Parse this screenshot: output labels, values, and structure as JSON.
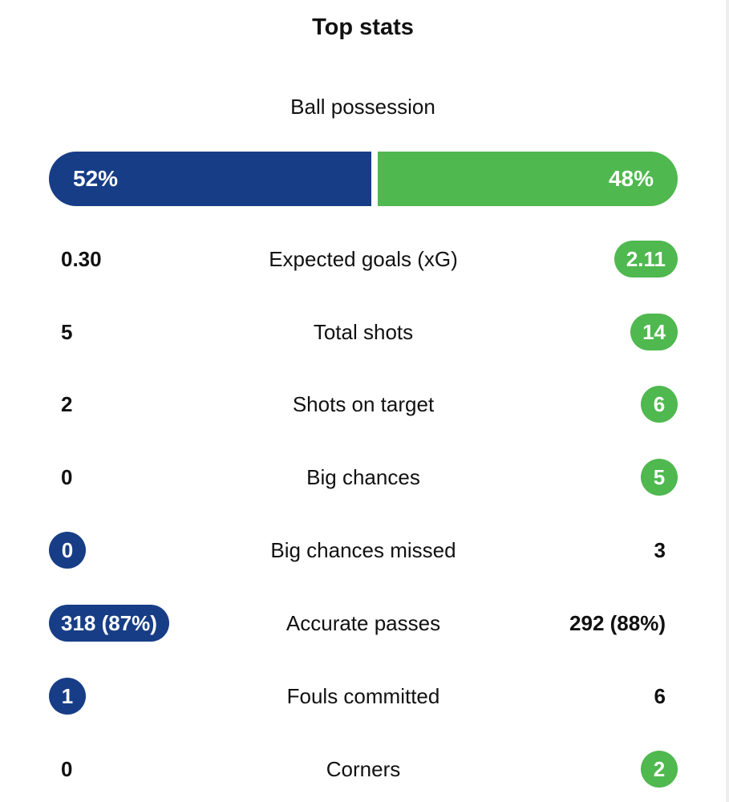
{
  "title": "Top stats",
  "possession": {
    "label": "Ball possession",
    "home_text": "52%",
    "away_text": "48%",
    "home_fraction": 0.52,
    "away_fraction": 0.48
  },
  "colors": {
    "home": "#173d86",
    "away": "#4fb84f"
  },
  "stats": [
    {
      "label": "Expected goals (xG)",
      "home": "0.30",
      "away": "2.11",
      "highlight": "away"
    },
    {
      "label": "Total shots",
      "home": "5",
      "away": "14",
      "highlight": "away"
    },
    {
      "label": "Shots on target",
      "home": "2",
      "away": "6",
      "highlight": "away"
    },
    {
      "label": "Big chances",
      "home": "0",
      "away": "5",
      "highlight": "away"
    },
    {
      "label": "Big chances missed",
      "home": "0",
      "away": "3",
      "highlight": "home"
    },
    {
      "label": "Accurate passes",
      "home": "318 (87%)",
      "away": "292 (88%)",
      "highlight": "home"
    },
    {
      "label": "Fouls committed",
      "home": "1",
      "away": "6",
      "highlight": "home"
    },
    {
      "label": "Corners",
      "home": "0",
      "away": "2",
      "highlight": "away"
    }
  ]
}
